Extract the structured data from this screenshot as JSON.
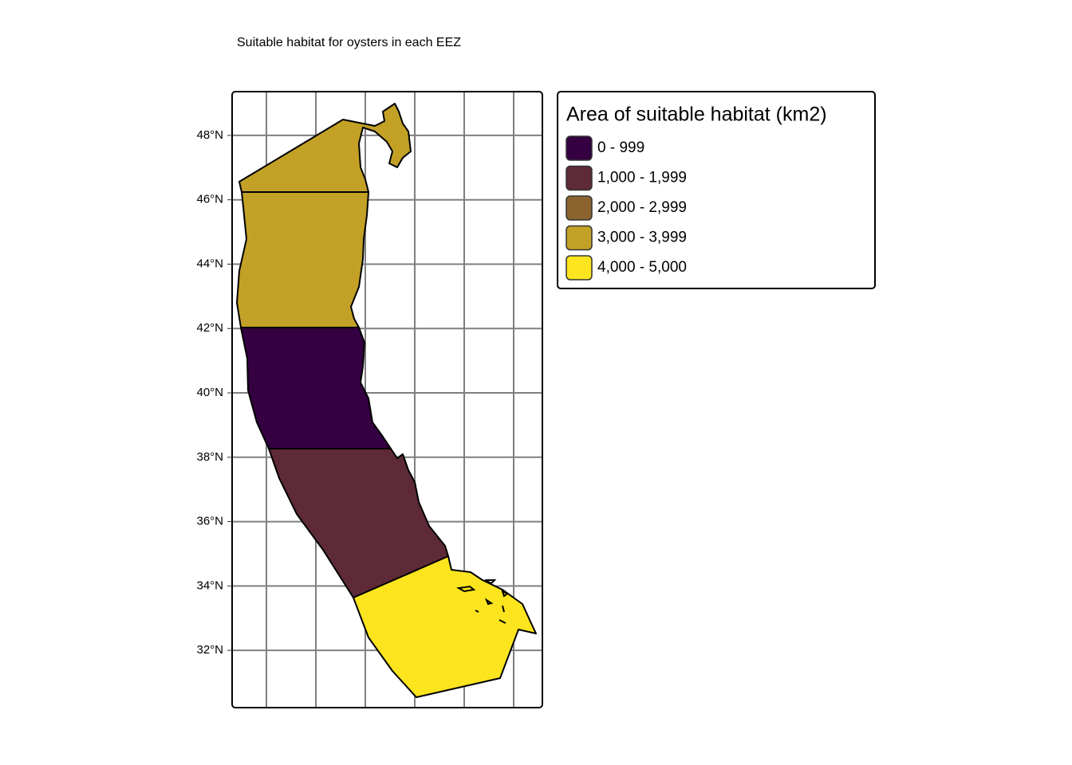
{
  "map": {
    "title": "Suitable habitat for oysters in each EEZ",
    "ylim": [
      30.22,
      49.36
    ],
    "yticks": [
      {
        "value": 48,
        "label": "48°N"
      },
      {
        "value": 46,
        "label": "46°N"
      },
      {
        "value": 44,
        "label": "44°N"
      },
      {
        "value": 42,
        "label": "42°N"
      },
      {
        "value": 40,
        "label": "40°N"
      },
      {
        "value": 38,
        "label": "38°N"
      },
      {
        "value": 36,
        "label": "36°N"
      },
      {
        "value": 34,
        "label": "34°N"
      },
      {
        "value": 32,
        "label": "32°N"
      }
    ],
    "legend": {
      "title": "Area of suitable habitat (km2)",
      "items": [
        {
          "label": "0 - 999",
          "color": "#340042"
        },
        {
          "label": "1,000 - 1,999",
          "color": "#5e2a37"
        },
        {
          "label": "2,000 - 2,999",
          "color": "#8c6430"
        },
        {
          "label": "3,000 - 3,999",
          "color": "#c2a126"
        },
        {
          "label": "4,000 - 5,000",
          "color": "#fce51e"
        }
      ]
    }
  }
}
